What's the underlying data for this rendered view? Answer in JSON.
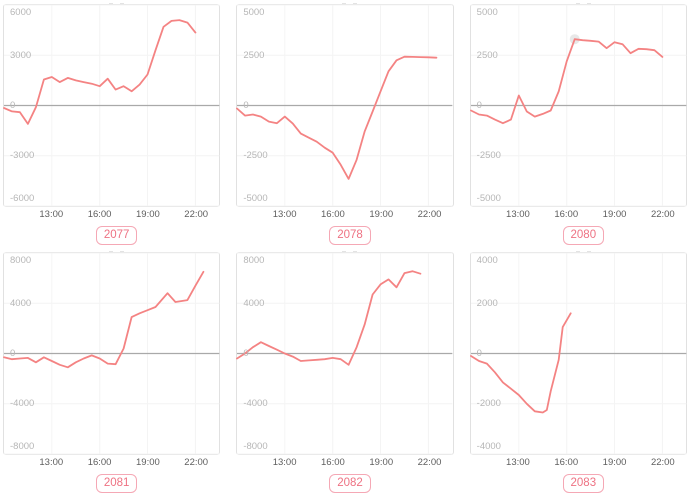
{
  "page": {
    "background": "#ffffff"
  },
  "theme": {
    "line_color": "#f48383",
    "zero_line_color": "#a9a9a9",
    "grid_color": "#f4f4f4",
    "panel_border_color": "#e1e1e1",
    "y_label_color": "#b6b6b6",
    "x_label_color": "#5e5e5e",
    "badge_text_color": "#ee7283",
    "badge_border_color": "#f5a8b5",
    "fragment_color": "#e3e3e3",
    "highlight_dot_color": "rgba(130,130,130,0.18)"
  },
  "chart_data": [
    {
      "id": "2077",
      "type": "line",
      "x_range": [
        "10:00",
        "23:30"
      ],
      "x_ticks": [
        "13:00",
        "16:00",
        "19:00",
        "22:00"
      ],
      "ylim": [
        -6000,
        6000
      ],
      "y_ticks": [
        6000,
        3000,
        0,
        -3000,
        -6000
      ],
      "series": [
        {
          "x": [
            "10:00",
            "10:30",
            "11:00",
            "11:30",
            "12:00",
            "12:30",
            "13:00",
            "13:30",
            "14:00",
            "14:30",
            "15:00",
            "15:30",
            "16:00",
            "16:30",
            "17:00",
            "17:30",
            "18:00",
            "18:30",
            "19:00",
            "19:30",
            "20:00",
            "20:30",
            "21:00",
            "21:30",
            "22:00"
          ],
          "y": [
            -150,
            -350,
            -400,
            -1100,
            -100,
            1550,
            1700,
            1400,
            1650,
            1500,
            1400,
            1300,
            1150,
            1600,
            950,
            1150,
            850,
            1250,
            1850,
            3300,
            4700,
            5050,
            5100,
            4950,
            4350
          ]
        }
      ]
    },
    {
      "id": "2078",
      "type": "line",
      "x_range": [
        "10:00",
        "23:30"
      ],
      "x_ticks": [
        "13:00",
        "16:00",
        "19:00",
        "22:00"
      ],
      "ylim": [
        -5000,
        5000
      ],
      "y_ticks": [
        5000,
        2500,
        0,
        -2500,
        -5000
      ],
      "series": [
        {
          "x": [
            "10:00",
            "10:30",
            "11:00",
            "11:30",
            "12:00",
            "12:30",
            "13:00",
            "13:30",
            "14:00",
            "14:30",
            "15:00",
            "15:30",
            "16:00",
            "16:30",
            "17:00",
            "17:30",
            "18:00",
            "18:30",
            "19:00",
            "19:30",
            "20:00",
            "20:30",
            "21:00",
            "21:30",
            "22:00",
            "22:30"
          ],
          "y": [
            -150,
            -500,
            -450,
            -550,
            -800,
            -880,
            -550,
            -900,
            -1400,
            -1600,
            -1800,
            -2100,
            -2350,
            -2950,
            -3650,
            -2700,
            -1300,
            -300,
            700,
            1700,
            2250,
            2430,
            2420,
            2410,
            2400,
            2380
          ]
        }
      ]
    },
    {
      "id": "2080",
      "type": "line",
      "x_range": [
        "10:00",
        "23:30"
      ],
      "x_ticks": [
        "13:00",
        "16:00",
        "19:00",
        "22:00"
      ],
      "ylim": [
        -5000,
        5000
      ],
      "y_ticks": [
        5000,
        2500,
        0,
        -2500,
        -5000
      ],
      "highlight_point": {
        "x": "16:30",
        "y": 3300
      },
      "series": [
        {
          "x": [
            "10:00",
            "10:30",
            "11:00",
            "11:30",
            "12:00",
            "12:30",
            "13:00",
            "13:30",
            "14:00",
            "14:30",
            "15:00",
            "15:30",
            "16:00",
            "16:30",
            "17:00",
            "17:30",
            "18:00",
            "18:30",
            "19:00",
            "19:30",
            "20:00",
            "20:30",
            "21:00",
            "21:30",
            "22:00"
          ],
          "y": [
            -250,
            -450,
            -500,
            -700,
            -880,
            -700,
            500,
            -300,
            -550,
            -420,
            -250,
            700,
            2200,
            3300,
            3250,
            3220,
            3180,
            2850,
            3150,
            3050,
            2600,
            2820,
            2800,
            2750,
            2420
          ]
        }
      ]
    },
    {
      "id": "2081",
      "type": "line",
      "x_range": [
        "10:00",
        "23:30"
      ],
      "x_ticks": [
        "13:00",
        "16:00",
        "19:00",
        "22:00"
      ],
      "ylim": [
        -8000,
        8000
      ],
      "y_ticks": [
        8000,
        4000,
        0,
        -4000,
        -8000
      ],
      "series": [
        {
          "x": [
            "10:00",
            "10:30",
            "11:00",
            "11:30",
            "12:00",
            "12:30",
            "13:00",
            "13:30",
            "14:00",
            "14:30",
            "15:00",
            "15:30",
            "16:00",
            "16:30",
            "17:00",
            "17:30",
            "18:00",
            "18:30",
            "19:00",
            "19:30",
            "20:15",
            "20:45",
            "21:30",
            "22:00",
            "22:30"
          ],
          "y": [
            -300,
            -450,
            -400,
            -350,
            -700,
            -300,
            -600,
            -900,
            -1100,
            -700,
            -400,
            -150,
            -400,
            -800,
            -850,
            400,
            2900,
            3200,
            3450,
            3700,
            4800,
            4100,
            4250,
            5400,
            6500
          ]
        }
      ]
    },
    {
      "id": "2082",
      "type": "line",
      "x_range": [
        "10:00",
        "23:30"
      ],
      "x_ticks": [
        "13:00",
        "16:00",
        "19:00",
        "22:00"
      ],
      "ylim": [
        -8000,
        8000
      ],
      "y_ticks": [
        8000,
        4000,
        0,
        -4000,
        -8000
      ],
      "series": [
        {
          "x": [
            "10:00",
            "10:30",
            "11:00",
            "11:30",
            "12:00",
            "12:30",
            "13:00",
            "13:30",
            "14:00",
            "14:30",
            "15:00",
            "15:30",
            "16:00",
            "16:30",
            "17:00",
            "17:30",
            "18:00",
            "18:30",
            "19:00",
            "19:30",
            "20:00",
            "20:30",
            "21:00",
            "21:30"
          ],
          "y": [
            -400,
            0,
            500,
            900,
            600,
            300,
            0,
            -250,
            -600,
            -550,
            -500,
            -450,
            -350,
            -450,
            -900,
            500,
            2300,
            4700,
            5500,
            5900,
            5270,
            6400,
            6550,
            6350
          ]
        }
      ]
    },
    {
      "id": "2083",
      "type": "line",
      "x_range": [
        "10:00",
        "23:30"
      ],
      "x_ticks": [
        "13:00",
        "16:00",
        "19:00",
        "22:00"
      ],
      "ylim": [
        -4000,
        4000
      ],
      "y_ticks": [
        4000,
        2000,
        0,
        -2000,
        -4000
      ],
      "series": [
        {
          "x": [
            "10:00",
            "10:30",
            "11:00",
            "11:30",
            "12:00",
            "12:30",
            "13:00",
            "13:30",
            "14:00",
            "14:30",
            "14:45",
            "15:00",
            "15:30",
            "15:45",
            "16:15"
          ],
          "y": [
            -100,
            -300,
            -400,
            -750,
            -1150,
            -1400,
            -1650,
            -2000,
            -2300,
            -2350,
            -2250,
            -1500,
            -250,
            1050,
            1600
          ]
        }
      ]
    }
  ]
}
